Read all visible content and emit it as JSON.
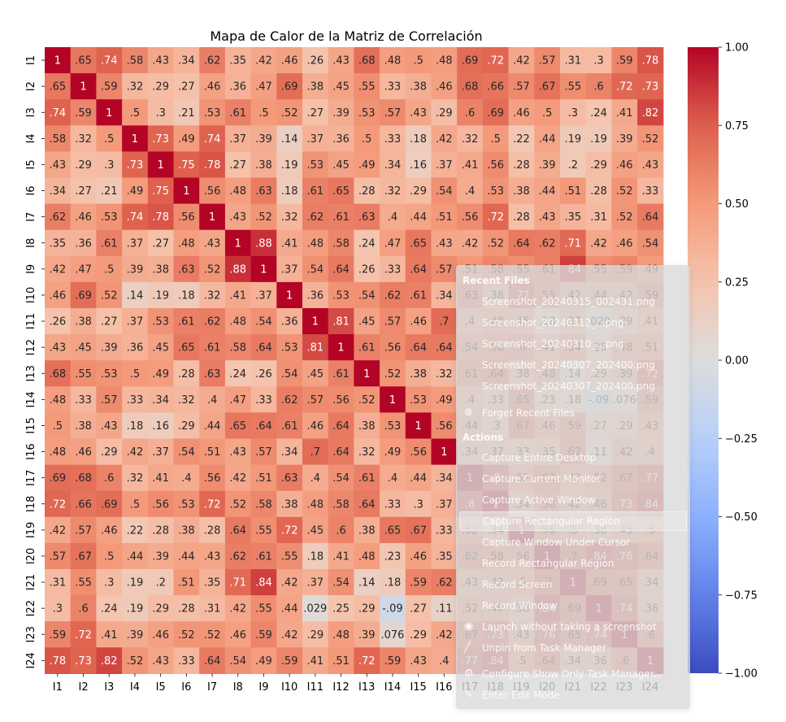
{
  "chart_data": {
    "type": "heatmap",
    "title": "Mapa de Calor de la Matriz de Correlación",
    "labels": [
      "I1",
      "I2",
      "I3",
      "I4",
      "I5",
      "I6",
      "I7",
      "I8",
      "I9",
      "I10",
      "I11",
      "I12",
      "I13",
      "I14",
      "I15",
      "I16",
      "I17",
      "I18",
      "I19",
      "I20",
      "I21",
      "I22",
      "I23",
      "I24"
    ],
    "colormap": "coolwarm",
    "vmin": -1.0,
    "vmax": 1.0,
    "colorbar_ticks": [
      "1.00",
      "0.75",
      "0.50",
      "0.25",
      "0.00",
      "−0.25",
      "−0.50",
      "−0.75",
      "−1.00"
    ],
    "matrix": [
      [
        1,
        0.65,
        0.74,
        0.58,
        0.43,
        0.34,
        0.62,
        0.35,
        0.42,
        0.46,
        0.26,
        0.43,
        0.68,
        0.48,
        0.5,
        0.48,
        0.69,
        0.72,
        0.42,
        0.57,
        0.31,
        0.3,
        0.59,
        0.78
      ],
      [
        0.65,
        1,
        0.59,
        0.32,
        0.29,
        0.27,
        0.46,
        0.36,
        0.47,
        0.69,
        0.38,
        0.45,
        0.55,
        0.33,
        0.38,
        0.46,
        0.68,
        0.66,
        0.57,
        0.67,
        0.55,
        0.6,
        0.72,
        0.73
      ],
      [
        0.74,
        0.59,
        1,
        0.5,
        0.3,
        0.21,
        0.53,
        0.61,
        0.5,
        0.52,
        0.27,
        0.39,
        0.53,
        0.57,
        0.43,
        0.29,
        0.6,
        0.69,
        0.46,
        0.5,
        0.3,
        0.24,
        0.41,
        0.82
      ],
      [
        0.58,
        0.32,
        0.5,
        1,
        0.73,
        0.49,
        0.74,
        0.37,
        0.39,
        0.14,
        0.37,
        0.36,
        0.5,
        0.33,
        0.18,
        0.42,
        0.32,
        0.5,
        0.22,
        0.44,
        0.19,
        0.19,
        0.39,
        0.52
      ],
      [
        0.43,
        0.29,
        0.3,
        0.73,
        1,
        0.75,
        0.78,
        0.27,
        0.38,
        0.19,
        0.53,
        0.45,
        0.49,
        0.34,
        0.16,
        0.37,
        0.41,
        0.56,
        0.28,
        0.39,
        0.2,
        0.29,
        0.46,
        0.43
      ],
      [
        0.34,
        0.27,
        0.21,
        0.49,
        0.75,
        1,
        0.56,
        0.48,
        0.63,
        0.18,
        0.61,
        0.65,
        0.28,
        0.32,
        0.29,
        0.54,
        0.4,
        0.53,
        0.38,
        0.44,
        0.51,
        0.28,
        0.52,
        0.33
      ],
      [
        0.62,
        0.46,
        0.53,
        0.74,
        0.78,
        0.56,
        1,
        0.43,
        0.52,
        0.32,
        0.62,
        0.61,
        0.63,
        0.4,
        0.44,
        0.51,
        0.56,
        0.72,
        0.28,
        0.43,
        0.35,
        0.31,
        0.52,
        0.64
      ],
      [
        0.35,
        0.36,
        0.61,
        0.37,
        0.27,
        0.48,
        0.43,
        1,
        0.88,
        0.41,
        0.48,
        0.58,
        0.24,
        0.47,
        0.65,
        0.43,
        0.42,
        0.52,
        0.64,
        0.62,
        0.71,
        0.42,
        0.46,
        0.54
      ],
      [
        0.42,
        0.47,
        0.5,
        0.39,
        0.38,
        0.63,
        0.52,
        0.88,
        1,
        0.37,
        0.54,
        0.64,
        0.26,
        0.33,
        0.64,
        0.57,
        0.51,
        0.58,
        0.55,
        0.61,
        0.84,
        0.55,
        0.59,
        0.49
      ],
      [
        0.46,
        0.69,
        0.52,
        0.14,
        0.19,
        0.18,
        0.32,
        0.41,
        0.37,
        1,
        0.36,
        0.53,
        0.54,
        0.62,
        0.61,
        0.34,
        0.63,
        0.38,
        0.72,
        0.55,
        0.42,
        0.44,
        0.42,
        0.59
      ],
      [
        0.26,
        0.38,
        0.27,
        0.37,
        0.53,
        0.61,
        0.62,
        0.48,
        0.54,
        0.36,
        1,
        0.81,
        0.45,
        0.57,
        0.46,
        0.7,
        0.4,
        0.48,
        0.45,
        0.18,
        0.37,
        0.029,
        0.29,
        0.41
      ],
      [
        0.43,
        0.45,
        0.39,
        0.36,
        0.45,
        0.65,
        0.61,
        0.58,
        0.64,
        0.53,
        0.81,
        1,
        0.61,
        0.56,
        0.64,
        0.64,
        0.54,
        0.58,
        0.6,
        0.41,
        0.54,
        0.25,
        0.48,
        0.51
      ],
      [
        0.68,
        0.55,
        0.53,
        0.5,
        0.49,
        0.28,
        0.63,
        0.24,
        0.26,
        0.54,
        0.45,
        0.61,
        1,
        0.52,
        0.38,
        0.32,
        0.61,
        0.64,
        0.38,
        0.48,
        0.14,
        0.29,
        0.39,
        0.72
      ],
      [
        0.48,
        0.33,
        0.57,
        0.33,
        0.34,
        0.32,
        0.4,
        0.47,
        0.33,
        0.62,
        0.57,
        0.56,
        0.52,
        1,
        0.53,
        0.49,
        0.4,
        0.33,
        0.65,
        0.23,
        0.18,
        -0.09,
        0.076,
        0.59
      ],
      [
        0.5,
        0.38,
        0.43,
        0.18,
        0.16,
        0.29,
        0.44,
        0.65,
        0.64,
        0.61,
        0.46,
        0.64,
        0.38,
        0.53,
        1,
        0.56,
        0.44,
        0.3,
        0.67,
        0.46,
        0.59,
        0.27,
        0.29,
        0.43
      ],
      [
        0.48,
        0.46,
        0.29,
        0.42,
        0.37,
        0.54,
        0.51,
        0.43,
        0.57,
        0.34,
        0.7,
        0.64,
        0.32,
        0.49,
        0.56,
        1,
        0.34,
        0.37,
        0.33,
        0.35,
        0.62,
        0.11,
        0.42,
        0.4
      ],
      [
        0.69,
        0.68,
        0.6,
        0.32,
        0.41,
        0.4,
        0.56,
        0.42,
        0.51,
        0.63,
        0.4,
        0.54,
        0.61,
        0.4,
        0.44,
        0.34,
        1,
        0.8,
        0.52,
        0.62,
        0.43,
        0.52,
        0.67,
        0.77
      ],
      [
        0.72,
        0.66,
        0.69,
        0.5,
        0.56,
        0.53,
        0.72,
        0.52,
        0.58,
        0.38,
        0.48,
        0.58,
        0.64,
        0.33,
        0.3,
        0.37,
        0.8,
        1,
        0.34,
        0.58,
        0.42,
        0.46,
        0.73,
        0.84
      ],
      [
        0.42,
        0.57,
        0.46,
        0.22,
        0.28,
        0.38,
        0.28,
        0.64,
        0.55,
        0.72,
        0.45,
        0.6,
        0.38,
        0.65,
        0.67,
        0.33,
        0.52,
        0.34,
        1,
        0.56,
        0.5,
        0.38,
        0.43,
        0.5
      ],
      [
        0.57,
        0.67,
        0.5,
        0.44,
        0.39,
        0.44,
        0.43,
        0.62,
        0.61,
        0.55,
        0.18,
        0.41,
        0.48,
        0.23,
        0.46,
        0.35,
        0.62,
        0.58,
        0.56,
        1,
        0.7,
        0.84,
        0.76,
        0.64
      ],
      [
        0.31,
        0.55,
        0.3,
        0.19,
        0.2,
        0.51,
        0.35,
        0.71,
        0.84,
        0.42,
        0.37,
        0.54,
        0.14,
        0.18,
        0.59,
        0.62,
        0.43,
        0.42,
        0.5,
        0.7,
        1,
        0.69,
        0.65,
        0.34
      ],
      [
        0.3,
        0.6,
        0.24,
        0.19,
        0.29,
        0.28,
        0.31,
        0.42,
        0.55,
        0.44,
        0.029,
        0.25,
        0.29,
        -0.09,
        0.27,
        0.11,
        0.52,
        0.46,
        0.38,
        0.84,
        0.69,
        1,
        0.74,
        0.36
      ],
      [
        0.59,
        0.72,
        0.41,
        0.39,
        0.46,
        0.52,
        0.52,
        0.46,
        0.59,
        0.42,
        0.29,
        0.48,
        0.39,
        0.076,
        0.29,
        0.42,
        0.67,
        0.73,
        0.43,
        0.76,
        0.65,
        0.74,
        1,
        0.6
      ],
      [
        0.78,
        0.73,
        0.82,
        0.52,
        0.43,
        0.33,
        0.64,
        0.54,
        0.49,
        0.59,
        0.41,
        0.51,
        0.72,
        0.59,
        0.43,
        0.4,
        0.77,
        0.84,
        0.5,
        0.64,
        0.34,
        0.36,
        0.6,
        1
      ]
    ]
  },
  "context_menu": {
    "recent_files_title": "Recent Files",
    "recent_files": [
      "Screenshot_20240315_002431.png",
      "Screenshot_20240312_...png",
      "Screenshot_20240310_...png",
      "Screenshot_20240307_202400.png",
      "Screenshot_20240307_202400.png"
    ],
    "forget_label": "Forget Recent Files",
    "actions_title": "Actions",
    "actions": [
      "Capture Entire Desktop",
      "Capture Current Monitor",
      "Capture Active Window",
      "Capture Rectangular Region",
      "Capture Window Under Cursor",
      "Record Rectangular Region",
      "Record Screen",
      "Record Window"
    ],
    "bottom_items": [
      "Launch without taking a screenshot",
      "Unpin from Task Manager",
      "Configure Show Only Task Manager...",
      "Enter Edit Mode"
    ]
  }
}
